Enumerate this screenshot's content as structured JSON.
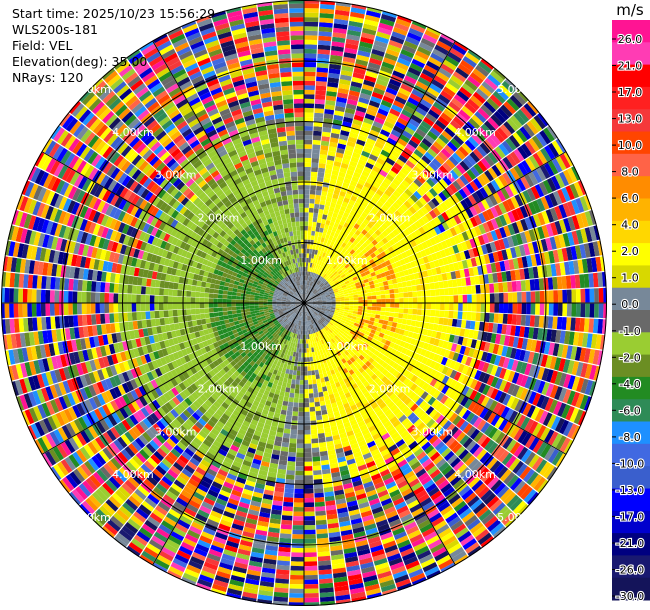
{
  "header": {
    "start_time": "Start time: 2025/10/23 15:56:29",
    "station": "WLS200s-181",
    "field": "Field: VEL",
    "elevation": "Elevation(deg): 35.00",
    "nrays": "NRays: 120"
  },
  "chart_data": {
    "type": "heatmap",
    "projection": "polar (PPI scan)",
    "field": "VEL",
    "units": "m/s",
    "elevation_deg": 35.0,
    "n_rays": 120,
    "range_rings_km": [
      1,
      2,
      3,
      4,
      5
    ],
    "range_ring_labels": [
      "1.00km",
      "2.00km",
      "3.00km",
      "4.00km",
      "5.00km"
    ],
    "colorbar": {
      "label": "m/s",
      "ticks": [
        "26.0",
        "21.0",
        "17.0",
        "13.0",
        "10.0",
        "8.0",
        "6.0",
        "4.0",
        "2.0",
        "1.0",
        "0.0",
        "-1.0",
        "-2.0",
        "-4.0",
        "-6.0",
        "-8.0",
        "-10.0",
        "-13.0",
        "-17.0",
        "-21.0",
        "-26.0",
        "-30.0"
      ],
      "colors": [
        "#ff1493",
        "#ff3cb4",
        "#ff0000",
        "#ff2020",
        "#f5383a",
        "#ff4500",
        "#ff6347",
        "#ff8c00",
        "#ffb300",
        "#ffd700",
        "#ffff00",
        "#d8d800",
        "#778899",
        "#696969",
        "#9acd32",
        "#6b8e23",
        "#228b22",
        "#2e8b57",
        "#1e90ff",
        "#4169e1",
        "#3a5fcd",
        "#0000ff",
        "#0000cd",
        "#000080",
        "#191970",
        "#14145a"
      ]
    },
    "pattern": {
      "near_range_km": [
        0,
        3.0
      ],
      "near_range_description": "approaching (negative) on west side, receding (positive) on east side",
      "far_range_km": [
        3.0,
        5.0
      ],
      "far_range_description": "noisy / aliased velocities"
    }
  }
}
